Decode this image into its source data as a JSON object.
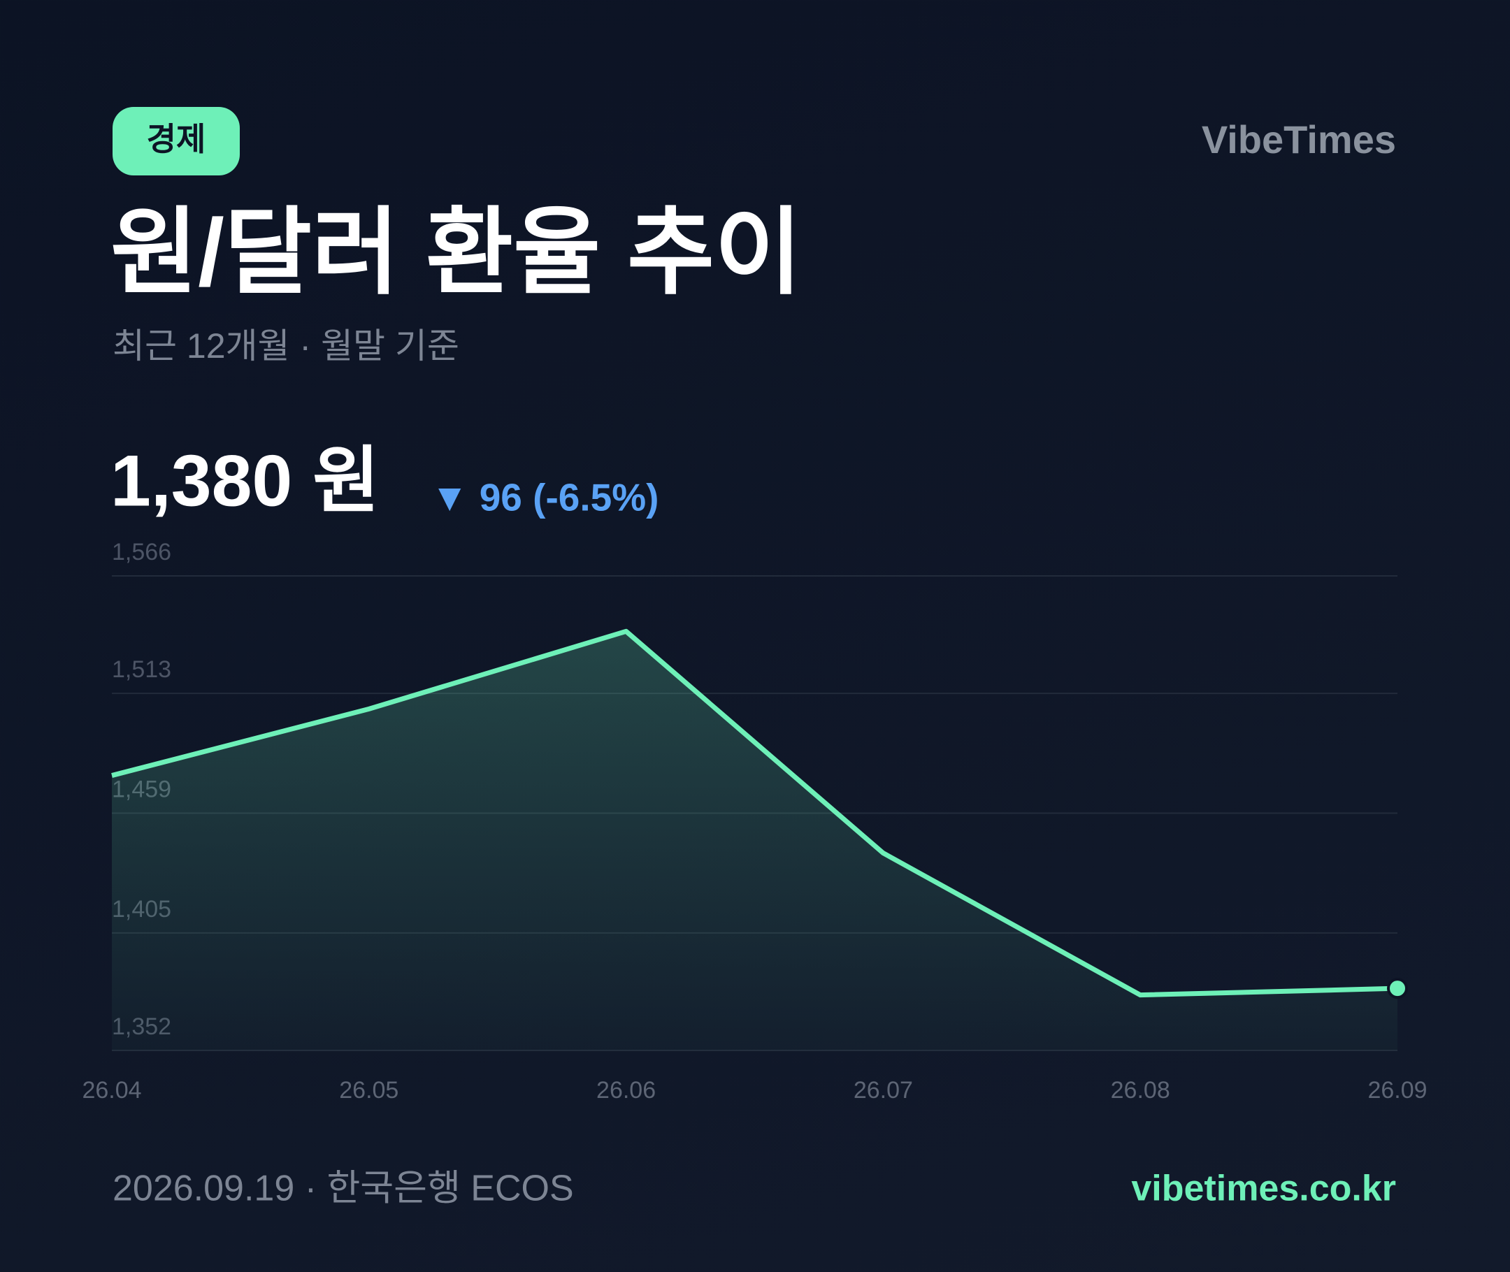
{
  "header": {
    "badge": "경제",
    "brand": "VibeTimes"
  },
  "chart_data": {
    "type": "line",
    "title": "원/달러 환율 추이",
    "subtitle": "최근 12개월 · 월말 기준",
    "headline": "1,380 원",
    "change": "▼ 96 (-6.5%)",
    "categories": [
      "26.04",
      "26.05",
      "26.06",
      "26.07",
      "26.08",
      "26.09"
    ],
    "values": [
      1476,
      1506,
      1541,
      1441,
      1377,
      1380
    ],
    "color": "#6ef0b8",
    "ylim": [
      1352,
      1566
    ],
    "yticks": [
      {
        "value": 1566,
        "label": "1,566"
      },
      {
        "value": 1513,
        "label": "1,513"
      },
      {
        "value": 1459,
        "label": "1,459"
      },
      {
        "value": 1405,
        "label": "1,405"
      },
      {
        "value": 1352,
        "label": "1,352"
      }
    ],
    "grid": true
  },
  "footer": {
    "meta": "2026.09.19  ·  한국은행 ECOS",
    "site": "vibetimes.co.kr"
  }
}
